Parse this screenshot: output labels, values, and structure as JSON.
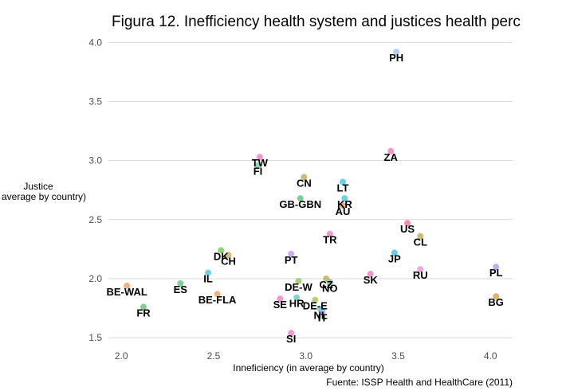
{
  "chart_data": {
    "type": "scatter",
    "title": "Figura 12. Inefficiency health system and justices health perc",
    "xlabel": "Inneficiency (in average by country)",
    "ylabel": [
      "Justice",
      "average by country)"
    ],
    "caption": "Fuente: ISSP Health and HealthCare (2011)",
    "xlim": [
      1.93,
      4.12
    ],
    "ylim": [
      1.44,
      4.09
    ],
    "xticks": [
      "2.0",
      "2.5",
      "3.0",
      "3.5",
      "4.0"
    ],
    "xtick_values": [
      2.0,
      2.5,
      3.0,
      3.5,
      4.0
    ],
    "yticks": [
      "1.5",
      "2.0",
      "2.5",
      "3.0",
      "3.5",
      "4.0"
    ],
    "ytick_values": [
      1.5,
      2.0,
      2.5,
      3.0,
      3.5,
      4.0
    ],
    "grid": true,
    "legend": "none",
    "points": [
      {
        "label": "PH",
        "x": 3.49,
        "y": 3.92,
        "color": "#a9c8f0"
      },
      {
        "label": "ZA",
        "x": 3.46,
        "y": 3.08,
        "color": "#f28bc5"
      },
      {
        "label": "TW",
        "x": 2.75,
        "y": 3.03,
        "color": "#f28bc5"
      },
      {
        "label": "FI",
        "x": 2.74,
        "y": 2.96,
        "color": "#7fd6a0"
      },
      {
        "label": "CN",
        "x": 2.99,
        "y": 2.86,
        "color": "#c5b56a"
      },
      {
        "label": "LT",
        "x": 3.2,
        "y": 2.82,
        "color": "#5ccbe8"
      },
      {
        "label": "GB-GBN",
        "x": 2.97,
        "y": 2.68,
        "color": "#73c98a"
      },
      {
        "label": "KR",
        "x": 3.21,
        "y": 2.68,
        "color": "#5ccbe8"
      },
      {
        "label": "AU",
        "x": 3.2,
        "y": 2.62,
        "color": "#e4a96a"
      },
      {
        "label": "US",
        "x": 3.55,
        "y": 2.47,
        "color": "#f5849a"
      },
      {
        "label": "TR",
        "x": 3.13,
        "y": 2.38,
        "color": "#f58bd0"
      },
      {
        "label": "CL",
        "x": 3.62,
        "y": 2.36,
        "color": "#c5b56a"
      },
      {
        "label": "DK",
        "x": 2.54,
        "y": 2.24,
        "color": "#86cc6e"
      },
      {
        "label": "CH",
        "x": 2.58,
        "y": 2.2,
        "color": "#d2b76a"
      },
      {
        "label": "JP",
        "x": 3.48,
        "y": 2.22,
        "color": "#56c8e0"
      },
      {
        "label": "PT",
        "x": 2.92,
        "y": 2.21,
        "color": "#c4a6ee"
      },
      {
        "label": "PL",
        "x": 4.03,
        "y": 2.1,
        "color": "#b3a5f0"
      },
      {
        "label": "RU",
        "x": 3.62,
        "y": 2.08,
        "color": "#ec9ed9"
      },
      {
        "label": "IL",
        "x": 2.47,
        "y": 2.05,
        "color": "#5ccbe8"
      },
      {
        "label": "SK",
        "x": 3.35,
        "y": 2.04,
        "color": "#f28bc5"
      },
      {
        "label": "DE-W",
        "x": 2.96,
        "y": 1.98,
        "color": "#9ccc6e"
      },
      {
        "label": "CZ",
        "x": 3.11,
        "y": 2.0,
        "color": "#c5b56a"
      },
      {
        "label": "NO",
        "x": 3.13,
        "y": 1.97,
        "color": "#7fc4a0"
      },
      {
        "label": "BE-WAL",
        "x": 2.03,
        "y": 1.94,
        "color": "#f3a96e"
      },
      {
        "label": "ES",
        "x": 2.32,
        "y": 1.96,
        "color": "#73c98a"
      },
      {
        "label": "BE-FLA",
        "x": 2.52,
        "y": 1.87,
        "color": "#f3a96e"
      },
      {
        "label": "SE",
        "x": 2.86,
        "y": 1.83,
        "color": "#f28bc5"
      },
      {
        "label": "HR",
        "x": 2.95,
        "y": 1.84,
        "color": "#73d0c6"
      },
      {
        "label": "DE-E",
        "x": 3.05,
        "y": 1.82,
        "color": "#b8c56a"
      },
      {
        "label": "NL",
        "x": 3.08,
        "y": 1.74,
        "color": "#5ccbe8"
      },
      {
        "label": "IT",
        "x": 3.09,
        "y": 1.72,
        "color": "#9fb8f0"
      },
      {
        "label": "FR",
        "x": 2.12,
        "y": 1.76,
        "color": "#73c98a"
      },
      {
        "label": "BG",
        "x": 4.03,
        "y": 1.85,
        "color": "#d9a85a"
      },
      {
        "label": "SI",
        "x": 2.92,
        "y": 1.54,
        "color": "#f58bd0"
      }
    ]
  }
}
